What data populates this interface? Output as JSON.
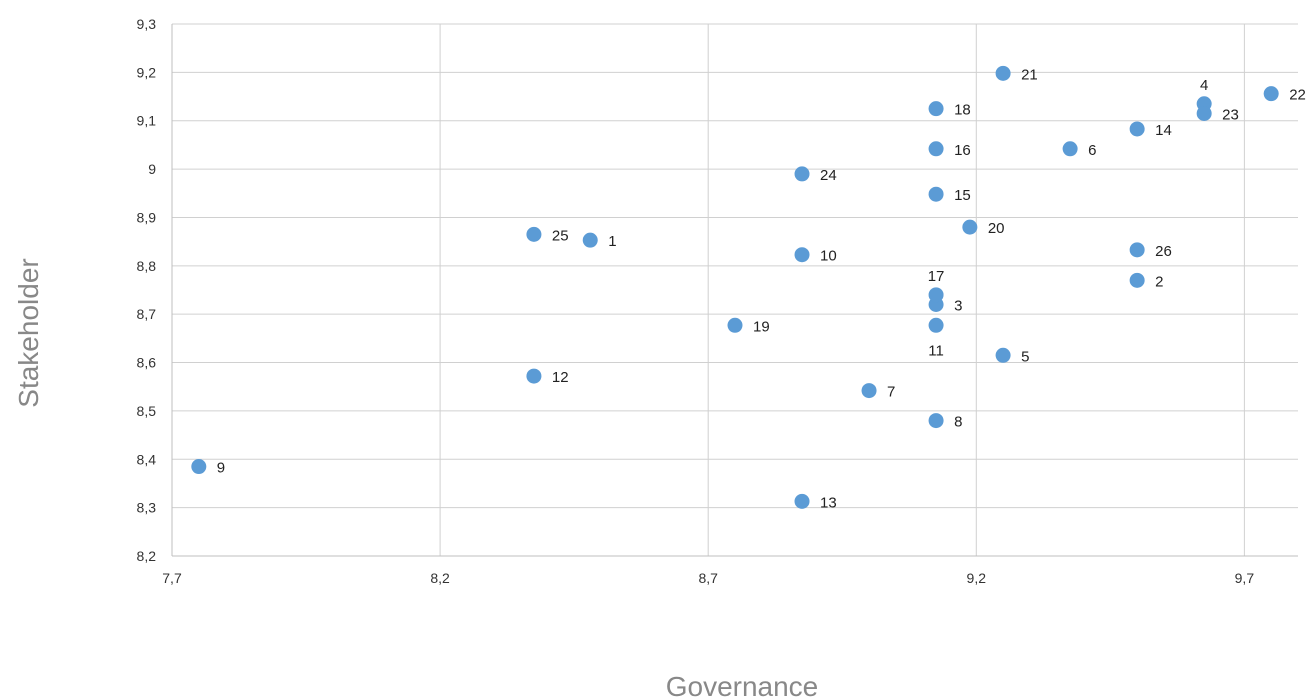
{
  "chart_data": {
    "type": "scatter",
    "title": "",
    "xlabel": "Governance",
    "ylabel": "Stakeholder",
    "xlim": [
      7.7,
      9.8
    ],
    "ylim": [
      8.2,
      9.3
    ],
    "x_ticks": [
      "7,7",
      "8,2",
      "8,7",
      "9,2",
      "9,7"
    ],
    "x_tick_values": [
      7.7,
      8.2,
      8.7,
      9.2,
      9.7
    ],
    "y_ticks": [
      "8,2",
      "8,3",
      "8,4",
      "8,5",
      "8,6",
      "8,7",
      "8,8",
      "8,9",
      "9",
      "9,1",
      "9,2",
      "9,3"
    ],
    "y_tick_values": [
      8.2,
      8.3,
      8.4,
      8.5,
      8.6,
      8.7,
      8.8,
      8.9,
      9.0,
      9.1,
      9.2,
      9.3
    ],
    "grid": true,
    "legend": "none",
    "marker_color": "#5b9bd5",
    "points": [
      {
        "label": "1",
        "x": 8.48,
        "y": 8.853,
        "label_pos": "right"
      },
      {
        "label": "2",
        "x": 9.5,
        "y": 8.77,
        "label_pos": "right"
      },
      {
        "label": "3",
        "x": 9.125,
        "y": 8.72,
        "label_pos": "right"
      },
      {
        "label": "4",
        "x": 9.625,
        "y": 9.135,
        "label_pos": "above"
      },
      {
        "label": "5",
        "x": 9.25,
        "y": 8.615,
        "label_pos": "right"
      },
      {
        "label": "6",
        "x": 9.375,
        "y": 9.042,
        "label_pos": "right"
      },
      {
        "label": "7",
        "x": 9.0,
        "y": 8.542,
        "label_pos": "right"
      },
      {
        "label": "8",
        "x": 9.125,
        "y": 8.48,
        "label_pos": "right"
      },
      {
        "label": "9",
        "x": 7.75,
        "y": 8.385,
        "label_pos": "right"
      },
      {
        "label": "10",
        "x": 8.875,
        "y": 8.823,
        "label_pos": "right"
      },
      {
        "label": "11",
        "x": 9.125,
        "y": 8.677,
        "label_pos": "below"
      },
      {
        "label": "12",
        "x": 8.375,
        "y": 8.572,
        "label_pos": "right"
      },
      {
        "label": "13",
        "x": 8.875,
        "y": 8.313,
        "label_pos": "right"
      },
      {
        "label": "14",
        "x": 9.5,
        "y": 9.083,
        "label_pos": "right"
      },
      {
        "label": "15",
        "x": 9.125,
        "y": 8.948,
        "label_pos": "right"
      },
      {
        "label": "16",
        "x": 9.125,
        "y": 9.042,
        "label_pos": "right"
      },
      {
        "label": "17",
        "x": 9.125,
        "y": 8.74,
        "label_pos": "above"
      },
      {
        "label": "18",
        "x": 9.125,
        "y": 9.125,
        "label_pos": "right"
      },
      {
        "label": "19",
        "x": 8.75,
        "y": 8.677,
        "label_pos": "right"
      },
      {
        "label": "20",
        "x": 9.188,
        "y": 8.88,
        "label_pos": "right"
      },
      {
        "label": "21",
        "x": 9.25,
        "y": 9.198,
        "label_pos": "right"
      },
      {
        "label": "22",
        "x": 9.75,
        "y": 9.156,
        "label_pos": "right"
      },
      {
        "label": "23",
        "x": 9.625,
        "y": 9.115,
        "label_pos": "right"
      },
      {
        "label": "24",
        "x": 8.875,
        "y": 8.99,
        "label_pos": "right"
      },
      {
        "label": "25",
        "x": 8.375,
        "y": 8.865,
        "label_pos": "right"
      },
      {
        "label": "26",
        "x": 9.5,
        "y": 8.833,
        "label_pos": "right"
      }
    ]
  }
}
